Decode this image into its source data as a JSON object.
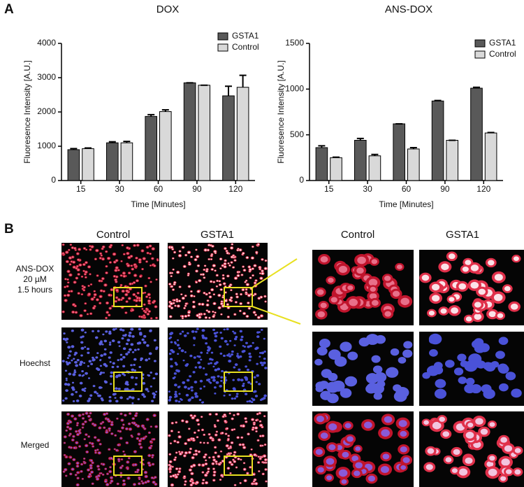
{
  "panel_a": {
    "label": "A"
  },
  "chart_data": [
    {
      "type": "bar",
      "title": "DOX",
      "x_label": "Time [Minutes]",
      "y_label": "Fluoresence Intensity [A.U.]",
      "categories": [
        "15",
        "30",
        "60",
        "90",
        "120"
      ],
      "series": [
        {
          "name": "GSTA1",
          "color": "#595959",
          "values": [
            900,
            1100,
            1870,
            2850,
            2470
          ],
          "errors": [
            30,
            30,
            50,
            0,
            280
          ]
        },
        {
          "name": "Control",
          "color": "#d9d9d9",
          "values": [
            930,
            1100,
            2010,
            2780,
            2720
          ],
          "errors": [
            20,
            40,
            50,
            0,
            350
          ]
        }
      ],
      "ylim": [
        0,
        4000
      ],
      "yticks": [
        0,
        1000,
        2000,
        3000,
        4000
      ],
      "grid": false,
      "legend": "top-right"
    },
    {
      "type": "bar",
      "title": "ANS-DOX",
      "x_label": "Time [Minutes]",
      "y_label": "Fluoresence Intensity [A.U.]",
      "categories": [
        "15",
        "30",
        "60",
        "90",
        "120"
      ],
      "series": [
        {
          "name": "GSTA1",
          "color": "#595959",
          "values": [
            360,
            440,
            620,
            870,
            1010
          ],
          "errors": [
            20,
            20,
            0,
            5,
            10
          ]
        },
        {
          "name": "Control",
          "color": "#d9d9d9",
          "values": [
            250,
            270,
            345,
            440,
            520
          ],
          "errors": [
            5,
            15,
            15,
            0,
            5
          ]
        }
      ],
      "ylim": [
        0,
        1500
      ],
      "yticks": [
        0,
        500,
        1000,
        1500
      ],
      "grid": false,
      "legend": "top-right"
    }
  ],
  "panel_b": {
    "label": "B",
    "columns": [
      "Control",
      "GSTA1",
      "Control",
      "GSTA1"
    ],
    "rows": [
      [
        "ANS-DOX",
        "20 µM",
        "1.5 hours"
      ],
      [
        "Hoechst"
      ],
      [
        "Merged"
      ]
    ]
  }
}
